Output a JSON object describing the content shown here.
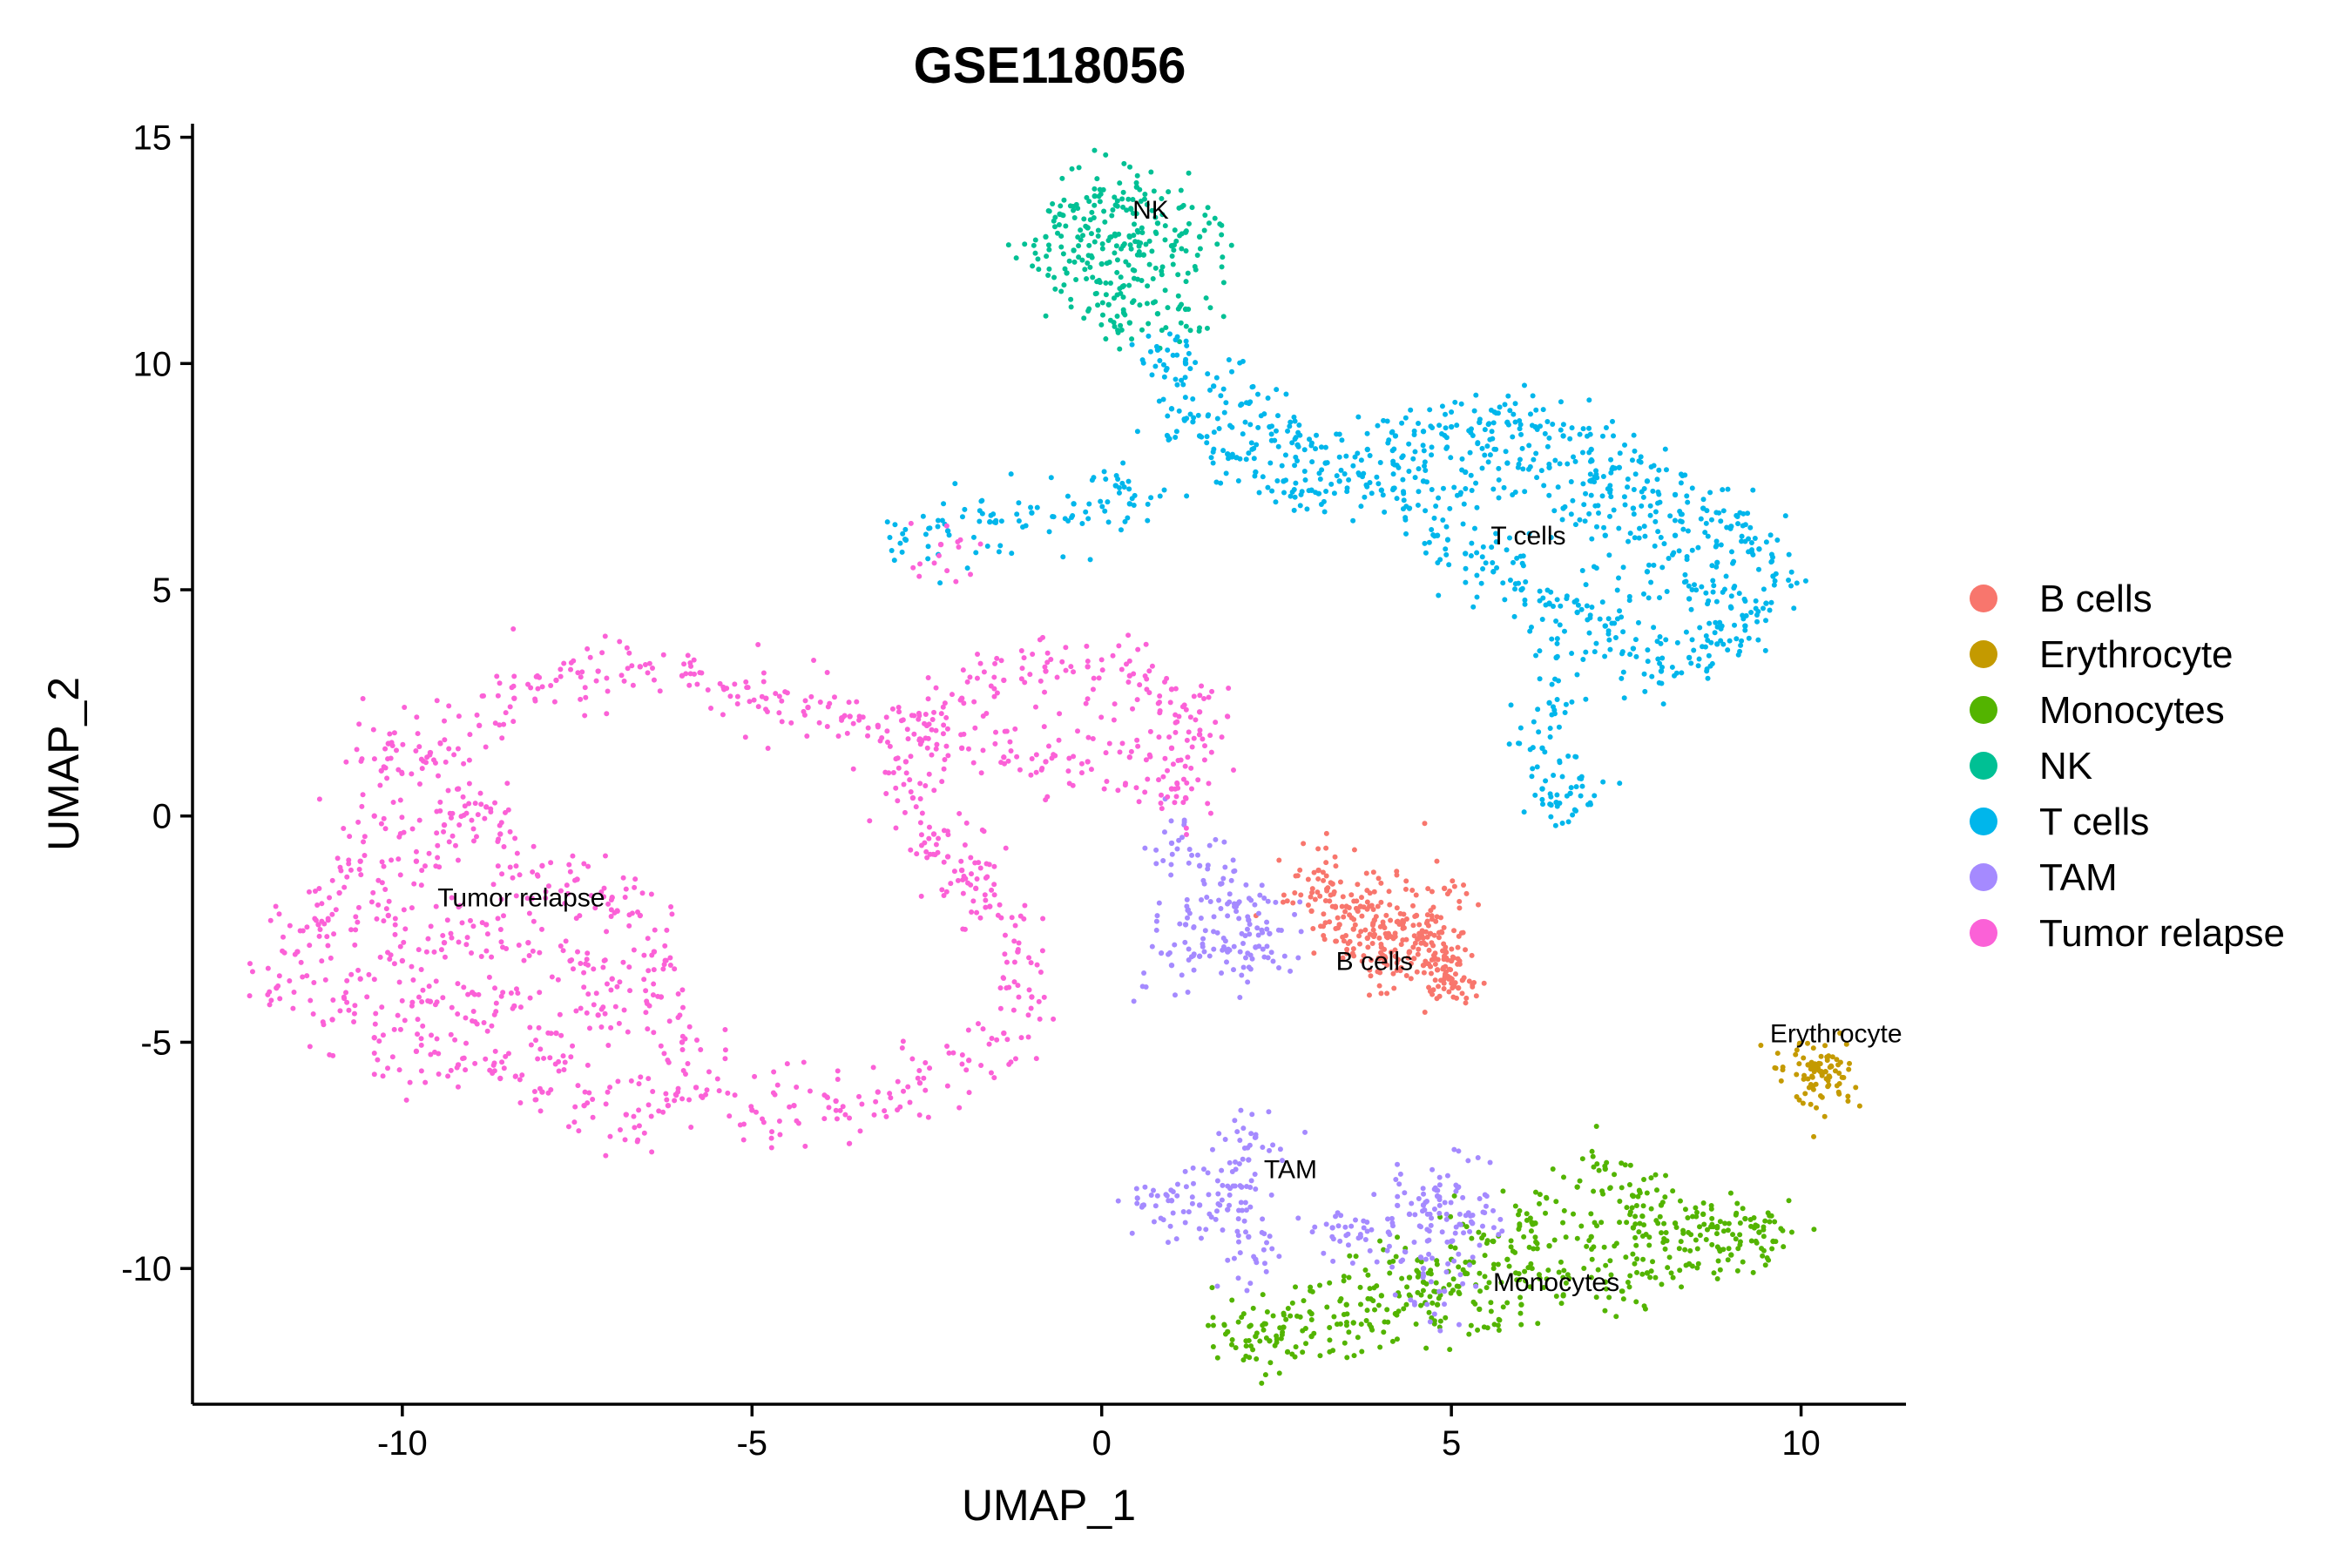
{
  "chart_data": {
    "type": "scatter",
    "title": "GSE118056",
    "xlabel": "UMAP_1",
    "ylabel": "UMAP_2",
    "xlim": [
      -13,
      11.5
    ],
    "ylim": [
      -13,
      15.3
    ],
    "xticks": [
      -10,
      -5,
      0,
      5,
      10
    ],
    "xtick_labels": [
      "-10",
      "-5",
      "0",
      "5",
      "10"
    ],
    "yticks": [
      -10,
      -5,
      0,
      5,
      10,
      15
    ],
    "ytick_labels": [
      "-10",
      "-5",
      "0",
      "5",
      "10",
      "15"
    ],
    "grid": false,
    "legend_position": "right",
    "series": [
      {
        "name": "B cells",
        "color": "#F8766D",
        "label_text": "B cells",
        "label_pos": [
          3.9,
          -3.4
        ],
        "points": [
          [
            3.1,
            -1.2
          ],
          [
            3.3,
            -1.5
          ],
          [
            3.5,
            -2.0
          ],
          [
            3.6,
            -2.5
          ],
          [
            3.8,
            -2.7
          ],
          [
            4.0,
            -2.9
          ],
          [
            4.2,
            -3.1
          ],
          [
            4.4,
            -3.0
          ],
          [
            4.6,
            -3.3
          ],
          [
            4.8,
            -3.4
          ],
          [
            5.0,
            -3.6
          ],
          [
            4.9,
            -3.1
          ],
          [
            4.7,
            -2.6
          ],
          [
            4.5,
            -2.2
          ],
          [
            4.3,
            -2.4
          ],
          [
            3.9,
            -2.3
          ],
          [
            3.4,
            -2.4
          ],
          [
            3.0,
            -2.1
          ],
          [
            4.9,
            -1.6
          ],
          [
            5.1,
            -3.8
          ],
          [
            4.1,
            -2.6
          ],
          [
            3.7,
            -2.0
          ],
          [
            4.6,
            -2.8
          ],
          [
            5.0,
            -3.2
          ]
        ]
      },
      {
        "name": "Erythrocyte",
        "color": "#C49A00",
        "label_text": "Erythrocyte",
        "label_pos": [
          10.5,
          -5.0
        ],
        "points": [
          [
            10.1,
            -5.5
          ],
          [
            10.2,
            -5.6
          ],
          [
            10.3,
            -5.7
          ],
          [
            10.4,
            -5.75
          ],
          [
            10.35,
            -5.65
          ],
          [
            10.15,
            -5.45
          ]
        ]
      },
      {
        "name": "Monocytes",
        "color": "#53B400",
        "label_text": "Monocytes",
        "label_pos": [
          6.5,
          -10.5
        ],
        "points": [
          [
            1.8,
            -11.4
          ],
          [
            2.2,
            -11.5
          ],
          [
            2.6,
            -11.3
          ],
          [
            3.0,
            -11.0
          ],
          [
            3.5,
            -10.8
          ],
          [
            4.0,
            -10.6
          ],
          [
            4.6,
            -10.3
          ],
          [
            5.2,
            -10.1
          ],
          [
            5.8,
            -9.8
          ],
          [
            6.4,
            -9.5
          ],
          [
            7.0,
            -9.3
          ],
          [
            7.6,
            -9.1
          ],
          [
            8.2,
            -9.0
          ],
          [
            8.8,
            -9.1
          ],
          [
            9.4,
            -9.2
          ],
          [
            9.6,
            -9.4
          ],
          [
            9.0,
            -9.7
          ],
          [
            8.4,
            -9.9
          ],
          [
            7.8,
            -10.1
          ],
          [
            7.2,
            -10.3
          ],
          [
            6.6,
            -10.6
          ],
          [
            6.0,
            -10.8
          ],
          [
            5.4,
            -10.9
          ],
          [
            4.8,
            -10.8
          ],
          [
            4.2,
            -11.0
          ],
          [
            3.6,
            -11.2
          ],
          [
            3.0,
            -11.5
          ],
          [
            2.4,
            -11.6
          ],
          [
            6.8,
            -8.2
          ],
          [
            7.2,
            -7.8
          ],
          [
            7.6,
            -8.4
          ],
          [
            8.0,
            -8.6
          ],
          [
            8.6,
            -8.8
          ],
          [
            9.2,
            -8.9
          ],
          [
            6.2,
            -9.0
          ],
          [
            5.6,
            -9.4
          ],
          [
            5.0,
            -9.8
          ],
          [
            4.4,
            -10.2
          ]
        ]
      },
      {
        "name": "NK",
        "color": "#00C094",
        "label_text": "NK",
        "label_pos": [
          0.7,
          13.2
        ],
        "points": [
          [
            -0.8,
            12.8
          ],
          [
            -0.6,
            13.3
          ],
          [
            -0.4,
            12.5
          ],
          [
            -0.2,
            13.0
          ],
          [
            0.0,
            12.2
          ],
          [
            0.2,
            13.5
          ],
          [
            0.4,
            12.8
          ],
          [
            0.6,
            12.4
          ],
          [
            0.8,
            13.1
          ],
          [
            1.0,
            12.6
          ],
          [
            1.2,
            12.9
          ],
          [
            1.4,
            12.8
          ],
          [
            0.3,
            11.7
          ],
          [
            0.1,
            11.3
          ],
          [
            0.4,
            10.9
          ],
          [
            0.8,
            11.1
          ],
          [
            1.2,
            11.2
          ],
          [
            -0.5,
            12.0
          ],
          [
            0.5,
            13.9
          ],
          [
            -0.1,
            13.7
          ]
        ]
      },
      {
        "name": "T cells",
        "color": "#00B6EB",
        "label_text": "T cells",
        "label_pos": [
          6.1,
          6.0
        ],
        "points": [
          [
            -2.8,
            6.1
          ],
          [
            -2.2,
            6.3
          ],
          [
            -1.6,
            6.5
          ],
          [
            -1.0,
            6.7
          ],
          [
            -0.4,
            6.9
          ],
          [
            0.2,
            7.3
          ],
          [
            0.4,
            6.9
          ],
          [
            0.8,
            10.3
          ],
          [
            1.2,
            10.0
          ],
          [
            1.6,
            9.5
          ],
          [
            2.0,
            9.1
          ],
          [
            2.4,
            8.6
          ],
          [
            2.8,
            8.2
          ],
          [
            3.2,
            7.8
          ],
          [
            1.0,
            9.0
          ],
          [
            1.4,
            8.4
          ],
          [
            1.8,
            8.0
          ],
          [
            2.2,
            7.6
          ],
          [
            2.6,
            7.4
          ],
          [
            3.0,
            7.2
          ],
          [
            3.4,
            7.4
          ],
          [
            3.8,
            8.1
          ],
          [
            4.2,
            8.4
          ],
          [
            4.6,
            8.5
          ],
          [
            5.0,
            8.6
          ],
          [
            5.4,
            8.7
          ],
          [
            5.8,
            8.7
          ],
          [
            6.2,
            8.6
          ],
          [
            6.6,
            8.4
          ],
          [
            7.0,
            8.1
          ],
          [
            7.4,
            7.7
          ],
          [
            7.8,
            7.4
          ],
          [
            8.2,
            7.1
          ],
          [
            8.6,
            6.8
          ],
          [
            9.0,
            6.4
          ],
          [
            9.4,
            5.9
          ],
          [
            9.6,
            5.3
          ],
          [
            9.5,
            4.7
          ],
          [
            9.2,
            4.2
          ],
          [
            8.8,
            3.8
          ],
          [
            8.4,
            3.5
          ],
          [
            8.0,
            3.2
          ],
          [
            7.6,
            3.7
          ],
          [
            7.2,
            4.2
          ],
          [
            6.8,
            4.5
          ],
          [
            6.4,
            4.7
          ],
          [
            6.0,
            5.0
          ],
          [
            5.6,
            5.4
          ],
          [
            5.2,
            5.8
          ],
          [
            4.8,
            6.2
          ],
          [
            4.4,
            6.8
          ],
          [
            4.0,
            7.2
          ],
          [
            4.6,
            7.4
          ],
          [
            5.2,
            7.6
          ],
          [
            5.8,
            7.8
          ],
          [
            6.4,
            7.7
          ],
          [
            7.0,
            7.4
          ],
          [
            7.6,
            6.8
          ],
          [
            8.2,
            6.2
          ],
          [
            8.8,
            5.6
          ],
          [
            6.6,
            6.8
          ],
          [
            7.2,
            6.2
          ],
          [
            7.8,
            5.4
          ],
          [
            8.4,
            4.8
          ],
          [
            9.0,
            4.6
          ],
          [
            6.5,
            3.5
          ],
          [
            6.4,
            2.5
          ],
          [
            6.3,
            1.5
          ],
          [
            6.3,
            0.6
          ],
          [
            6.5,
            0.3
          ],
          [
            6.7,
            0.5
          ]
        ]
      },
      {
        "name": "TAM",
        "color": "#A58AFF",
        "label_text": "TAM",
        "label_pos": [
          2.7,
          -8.0
        ],
        "points": [
          [
            1.0,
            -0.6
          ],
          [
            1.4,
            -1.1
          ],
          [
            1.7,
            -1.5
          ],
          [
            1.9,
            -2.0
          ],
          [
            2.1,
            -2.3
          ],
          [
            2.4,
            -2.6
          ],
          [
            2.2,
            -2.9
          ],
          [
            1.8,
            -3.0
          ],
          [
            1.4,
            -3.1
          ],
          [
            1.0,
            -3.3
          ],
          [
            1.2,
            -2.4
          ],
          [
            0.6,
            -8.6
          ],
          [
            1.0,
            -8.5
          ],
          [
            1.4,
            -8.6
          ],
          [
            1.8,
            -8.7
          ],
          [
            2.0,
            -8.2
          ],
          [
            2.1,
            -7.6
          ],
          [
            2.2,
            -7.1
          ],
          [
            2.1,
            -9.3
          ],
          [
            2.2,
            -9.8
          ],
          [
            3.3,
            -9.1
          ],
          [
            3.7,
            -9.3
          ],
          [
            4.1,
            -9.2
          ],
          [
            4.4,
            -8.8
          ],
          [
            4.6,
            -8.6
          ],
          [
            4.8,
            -8.4
          ],
          [
            5.1,
            -8.2
          ],
          [
            5.3,
            -9.0
          ],
          [
            5.0,
            -9.4
          ],
          [
            4.6,
            -10.0
          ],
          [
            4.9,
            -10.5
          ]
        ]
      },
      {
        "name": "Tumor relapse",
        "color": "#FB61D7",
        "label_text": "Tumor relapse",
        "label_pos": [
          -8.3,
          -2.0
        ],
        "points": [
          [
            -11.8,
            -3.8
          ],
          [
            -11.5,
            -3.0
          ],
          [
            -11.2,
            -2.4
          ],
          [
            -10.9,
            -1.7
          ],
          [
            -10.6,
            -1.0
          ],
          [
            -10.4,
            0.0
          ],
          [
            -10.3,
            1.0
          ],
          [
            -10.2,
            1.6
          ],
          [
            -9.6,
            1.4
          ],
          [
            -9.2,
            0.6
          ],
          [
            -8.8,
            0.2
          ],
          [
            -8.6,
            -0.4
          ],
          [
            -8.0,
            -1.1
          ],
          [
            -7.5,
            -1.4
          ],
          [
            -7.0,
            -1.8
          ],
          [
            -6.6,
            -2.2
          ],
          [
            -6.4,
            -3.0
          ],
          [
            -6.3,
            -4.0
          ],
          [
            -6.0,
            -5.0
          ],
          [
            -5.8,
            -6.0
          ],
          [
            -6.2,
            -6.4
          ],
          [
            -6.8,
            -6.6
          ],
          [
            -7.4,
            -6.4
          ],
          [
            -8.0,
            -6.1
          ],
          [
            -8.6,
            -5.8
          ],
          [
            -9.2,
            -5.5
          ],
          [
            -9.8,
            -5.2
          ],
          [
            -10.4,
            -4.9
          ],
          [
            -11.0,
            -4.5
          ],
          [
            -10.6,
            -3.6
          ],
          [
            -10.0,
            -3.2
          ],
          [
            -9.4,
            -2.8
          ],
          [
            -8.8,
            -2.4
          ],
          [
            -8.2,
            -2.8
          ],
          [
            -7.6,
            -3.2
          ],
          [
            -7.0,
            -3.6
          ],
          [
            -7.2,
            -4.4
          ],
          [
            -7.8,
            -4.8
          ],
          [
            -8.4,
            -4.2
          ],
          [
            -9.0,
            -3.9
          ],
          [
            -9.6,
            -4.1
          ],
          [
            -10.2,
            -2.2
          ],
          [
            -9.8,
            -1.0
          ],
          [
            -9.4,
            -0.2
          ],
          [
            -8.9,
            2.0
          ],
          [
            -8.4,
            2.6
          ],
          [
            -7.8,
            3.0
          ],
          [
            -7.2,
            3.2
          ],
          [
            -6.6,
            3.3
          ],
          [
            -6.0,
            3.1
          ],
          [
            -5.4,
            2.8
          ],
          [
            -4.8,
            2.6
          ],
          [
            -4.2,
            2.4
          ],
          [
            -3.6,
            2.2
          ],
          [
            -3.2,
            2.0
          ],
          [
            -2.8,
            1.2
          ],
          [
            -2.7,
            0.4
          ],
          [
            -2.4,
            -0.4
          ],
          [
            -2.0,
            -1.2
          ],
          [
            -1.6,
            -2.0
          ],
          [
            -1.2,
            -3.0
          ],
          [
            -1.0,
            -4.0
          ],
          [
            -1.4,
            -4.8
          ],
          [
            -1.9,
            -5.4
          ],
          [
            -2.6,
            -5.9
          ],
          [
            -3.2,
            -6.1
          ],
          [
            -3.8,
            -6.3
          ],
          [
            -4.4,
            -6.4
          ],
          [
            -5.0,
            -6.5
          ],
          [
            -2.5,
            2.0
          ],
          [
            -2.0,
            2.6
          ],
          [
            -1.4,
            3.0
          ],
          [
            -0.8,
            3.2
          ],
          [
            -0.2,
            3.3
          ],
          [
            0.4,
            3.1
          ],
          [
            1.0,
            2.8
          ],
          [
            1.4,
            2.3
          ],
          [
            1.4,
            1.8
          ],
          [
            1.0,
            1.5
          ],
          [
            0.4,
            1.3
          ],
          [
            -0.2,
            1.2
          ],
          [
            -0.8,
            1.2
          ],
          [
            -1.4,
            1.3
          ],
          [
            -2.0,
            1.5
          ],
          [
            -2.6,
            1.7
          ],
          [
            -2.2,
            -0.9
          ],
          [
            -1.8,
            -1.6
          ],
          [
            1.0,
            0.6
          ],
          [
            1.2,
            0.4
          ],
          [
            -2.3,
            6.0
          ]
        ]
      }
    ]
  }
}
